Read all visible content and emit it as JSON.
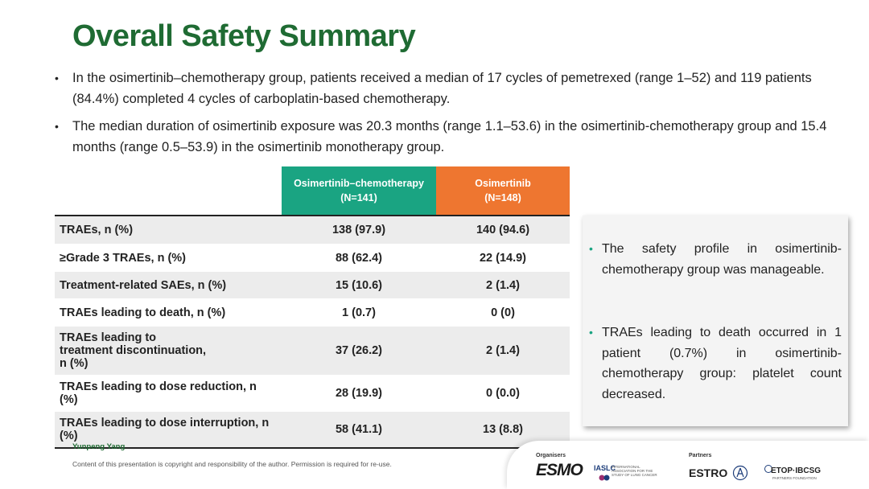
{
  "title": "Overall Safety Summary",
  "bullets": [
    "In the osimertinib–chemotherapy group, patients received a median of 17 cycles of pemetrexed (range 1–52) and 119 patients (84.4%) completed 4 cycles of carboplatin-based chemotherapy.",
    "The median duration of osimertinib exposure was 20.3 months (range 1.1–53.6) in the osimertinib-chemotherapy group and 15.4 months (range 0.5–53.9) in the osimertinib monotherapy group."
  ],
  "table": {
    "headers": [
      {
        "name": "Osimertinib–chemotherapy",
        "n": "(N=141)"
      },
      {
        "name": "Osimertinib",
        "n": "(N=148)"
      }
    ],
    "rows": [
      {
        "label": "TRAEs, n (%)",
        "combo": "138 (97.9)",
        "mono": "140 (94.6)"
      },
      {
        "label": "≥Grade 3 TRAEs, n (%)",
        "combo": "88 (62.4)",
        "mono": "22 (14.9)"
      },
      {
        "label": "Treatment-related SAEs, n (%)",
        "combo": "15 (10.6)",
        "mono": "2 (1.4)"
      },
      {
        "label": "TRAEs leading to death, n (%)",
        "combo": "1 (0.7)",
        "mono": "0 (0)"
      },
      {
        "label": "TRAEs leading to treatment discontinuation, n (%)",
        "combo": "37 (26.2)",
        "mono": "2 (1.4)"
      },
      {
        "label": "TRAEs leading to dose reduction, n (%)",
        "combo": "28 (19.9)",
        "mono": "0 (0.0)"
      },
      {
        "label": "TRAEs leading to dose interruption, n (%)",
        "combo": "58 (41.1)",
        "mono": "13 (8.8)"
      }
    ]
  },
  "side_notes": [
    "The safety profile in osimertinib-chemotherapy group was manageable.",
    "TRAEs leading to death occurred in 1 patient (0.7%) in osimertinib-chemotherapy group: platelet count decreased."
  ],
  "footer": {
    "author": "Yunpeng Yang",
    "copyright": "Content of this presentation is copyright and responsibility of the author. Permission is required for re-use.",
    "organisers_label": "Organisers",
    "partners_label": "Partners",
    "logos": {
      "esmo": "ESMO",
      "iaslc": "IASLC",
      "iaslc_sub": "INTERNATIONAL ASSOCIATION FOR THE STUDY OF LUNG CANCER",
      "estro": "ESTRO",
      "etop": "ETOP·IBCSG",
      "etop_sub": "PARTNERS FOUNDATION"
    }
  },
  "colors": {
    "title": "#1f6b33",
    "header_combo": "#1aa482",
    "header_mono": "#ee7630",
    "row_alt": "#ececec"
  }
}
